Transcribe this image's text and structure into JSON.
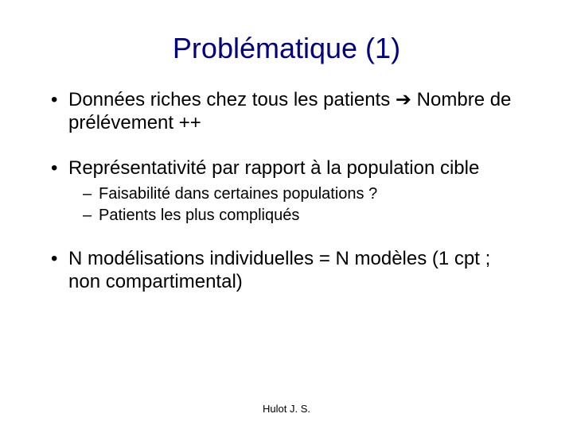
{
  "title": "Problématique (1)",
  "bullets": [
    {
      "text_before": "Données riches chez tous les patients ",
      "arrow": "➔",
      "text_after": " Nombre de prélévement ++"
    },
    {
      "text": "Représentativité par rapport à la population cible",
      "sub": [
        "Faisabilité dans certaines populations ?",
        "Patients les plus compliqués"
      ]
    },
    {
      "text": "N modélisations individuelles = N modèles (1 cpt ; non compartimental)"
    }
  ],
  "footer": "Hulot J. S.",
  "colors": {
    "title": "#000080",
    "body": "#000000",
    "background": "#ffffff"
  },
  "fontsizes": {
    "title_pt": 36,
    "level1_pt": 24,
    "level2_pt": 20,
    "footer_pt": 13
  }
}
